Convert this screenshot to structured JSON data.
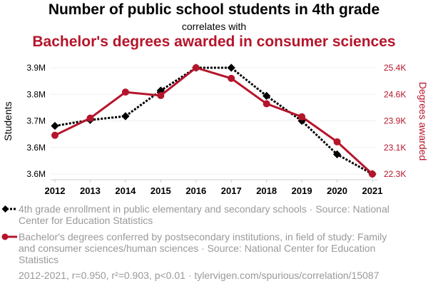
{
  "chart_data": {
    "type": "line",
    "title": "Number of public school students in 4th grade",
    "subtitle": "correlates with",
    "title2": "Bachelor's degrees awarded in consumer sciences",
    "x": [
      2012,
      2013,
      2014,
      2015,
      2016,
      2017,
      2018,
      2019,
      2020,
      2021
    ],
    "x_tick_labels": [
      "2012",
      "2013",
      "2014",
      "2015",
      "2016",
      "2017",
      "2018",
      "2019",
      "2020",
      "2021"
    ],
    "ylabel_left": "Students",
    "ylabel_right": "Degrees awarded",
    "left_ticks": [
      "3.9M",
      "3.8M",
      "3.7M",
      "3.6M",
      "3.6M"
    ],
    "right_ticks": [
      "25.4K",
      "24.6K",
      "23.9K",
      "23.1K",
      "22.3K"
    ],
    "ylim_left": [
      3.56,
      3.9
    ],
    "ylim_right": [
      22.3,
      25.4
    ],
    "grid": true,
    "series": [
      {
        "name": "4th grade enrollment in public elementary and secondary schools · Source: National Center for Education Statistics",
        "axis": "left",
        "unit": "millions",
        "color": "#000000",
        "values": [
          3.714,
          3.733,
          3.745,
          3.827,
          3.9,
          3.9,
          3.81,
          3.73,
          3.623,
          3.56
        ]
      },
      {
        "name": "Bachelor's degrees conferred by postsecondary institutions, in field of study: Family and consumer sciences/human sciences · Source: National Center for Education Statistics",
        "axis": "right",
        "unit": "thousands",
        "color": "#b5152b",
        "values": [
          23.43,
          23.93,
          24.69,
          24.59,
          25.4,
          25.09,
          24.35,
          23.97,
          23.24,
          22.3
        ]
      }
    ],
    "footer": "2012-2021, r=0.950, r²=0.903, p<0.01 · tylervigen.com/spurious/correlation/15087"
  }
}
